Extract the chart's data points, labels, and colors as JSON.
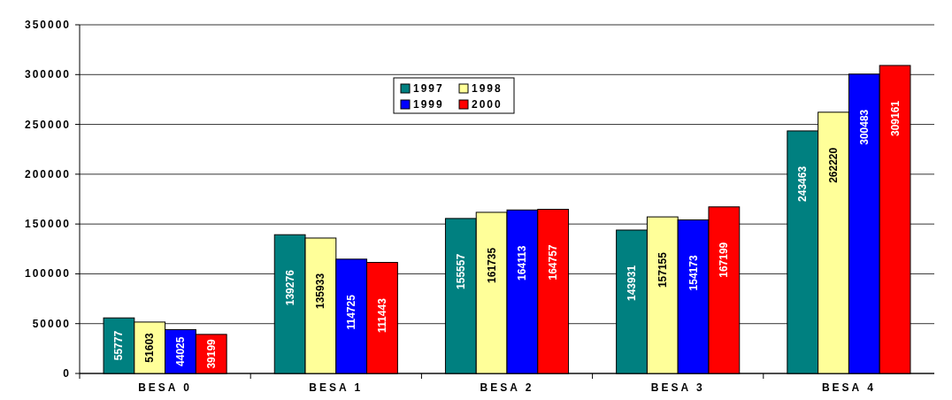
{
  "chart_data": {
    "type": "bar",
    "categories": [
      "BESA 0",
      "BESA 1",
      "BESA 2",
      "BESA 3",
      "BESA 4"
    ],
    "series": [
      {
        "name": "1997",
        "color": "#008080",
        "values": [
          55777,
          139276,
          155557,
          143931,
          243463
        ]
      },
      {
        "name": "1998",
        "color": "#ffff99",
        "values": [
          51603,
          135933,
          161735,
          157155,
          262220
        ]
      },
      {
        "name": "1999",
        "color": "#0000ff",
        "values": [
          44025,
          114725,
          164113,
          154173,
          300483
        ]
      },
      {
        "name": "2000",
        "color": "#ff0000",
        "values": [
          39199,
          111443,
          164757,
          167199,
          309161
        ]
      }
    ],
    "ylim": [
      0,
      350000
    ],
    "yticks": [
      0,
      50000,
      100000,
      150000,
      200000,
      250000,
      300000,
      350000
    ],
    "grid": "y",
    "legend": "top",
    "data_labels": true
  }
}
